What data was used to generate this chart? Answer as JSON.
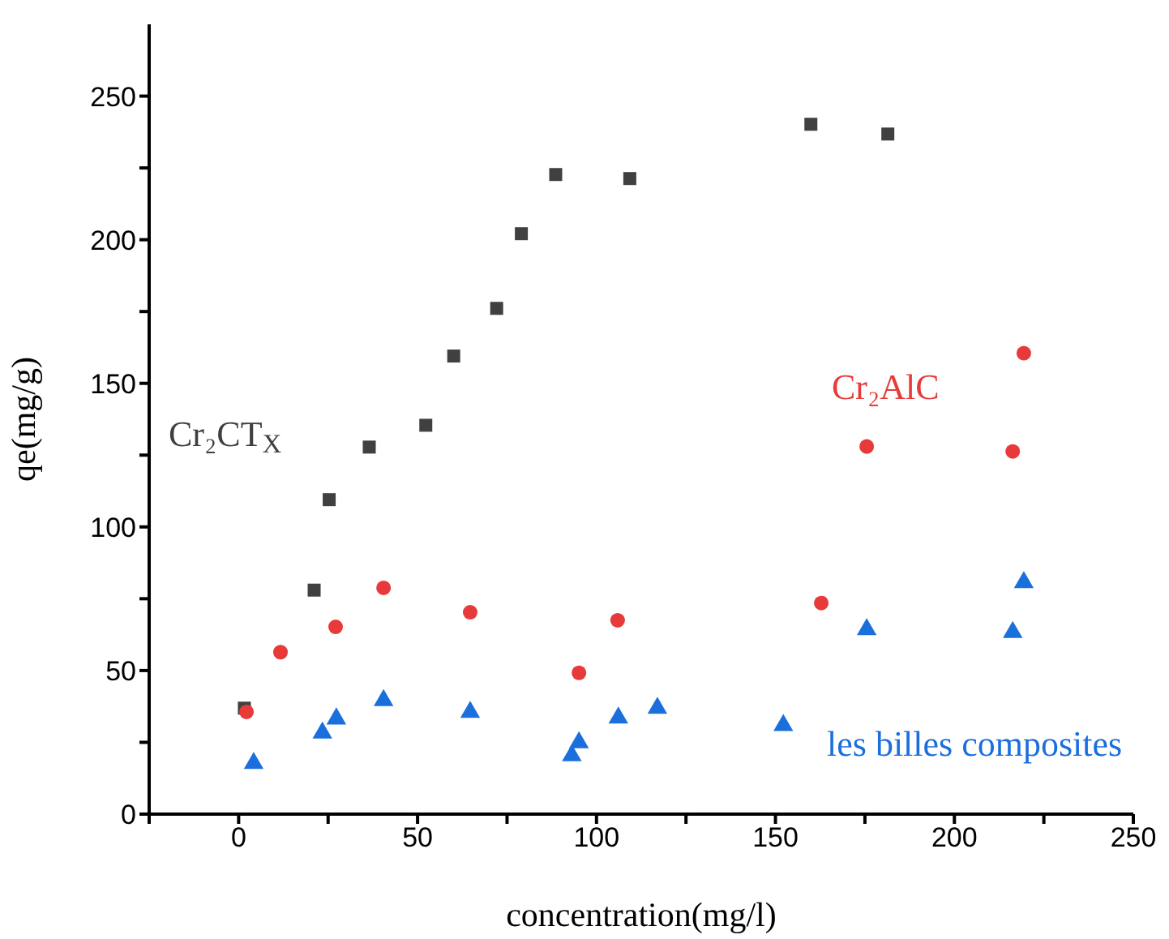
{
  "chart_data": {
    "type": "scatter",
    "xlabel": "concentration(mg/l)",
    "ylabel": "qe(mg/g)",
    "xlim": [
      -25,
      250
    ],
    "xticks": [
      {
        "value": -25,
        "label": null
      },
      0,
      {
        "value": 25,
        "label": null
      },
      50,
      {
        "value": 75,
        "label": null
      },
      100,
      {
        "value": 125,
        "label": null
      },
      150,
      {
        "value": 175,
        "label": null
      },
      200,
      {
        "value": 225,
        "label": null
      },
      250
    ],
    "ylim": [
      0,
      275
    ],
    "yticks": [
      0,
      {
        "value": 25,
        "label": null
      },
      50,
      {
        "value": 75,
        "label": null
      },
      100,
      {
        "value": 125,
        "label": null
      },
      150,
      {
        "value": 175,
        "label": null
      },
      200,
      {
        "value": 225,
        "label": null
      },
      250
    ],
    "grid": false,
    "legend": false,
    "series": [
      {
        "name": "Cr₂CT$_{X}$",
        "color": "#404040",
        "marker": "square",
        "x": [
          1.6,
          21.1,
          25.3,
          36.5,
          52.3,
          60.1,
          72.1,
          79.0,
          88.6,
          109.3,
          159.9,
          181.4
        ],
        "values": [
          36.9,
          78.0,
          109.5,
          127.8,
          135.4,
          159.5,
          176.1,
          202.1,
          222.7,
          221.3,
          240.2,
          236.8
        ]
      },
      {
        "name": "Cr₂AlC",
        "color": "#e83a3a",
        "marker": "circle",
        "x": [
          2.2,
          11.7,
          27.1,
          40.5,
          64.7,
          95.1,
          105.9,
          162.8,
          175.5,
          216.3,
          219.4
        ],
        "values": [
          35.6,
          56.4,
          65.2,
          78.8,
          70.3,
          49.2,
          67.5,
          73.5,
          128.0,
          126.3,
          160.5
        ]
      },
      {
        "name": "les billes composites",
        "color": "#1a6fdd",
        "marker": "triangle",
        "x": [
          4.2,
          23.4,
          27.3,
          40.5,
          64.7,
          93.1,
          95.1,
          106.1,
          117.0,
          152.2,
          175.5,
          216.3,
          219.4
        ],
        "values": [
          17.7,
          28.3,
          33.2,
          39.6,
          35.5,
          20.4,
          24.9,
          33.5,
          36.9,
          30.9,
          64.3,
          63.3,
          80.7
        ]
      }
    ]
  }
}
